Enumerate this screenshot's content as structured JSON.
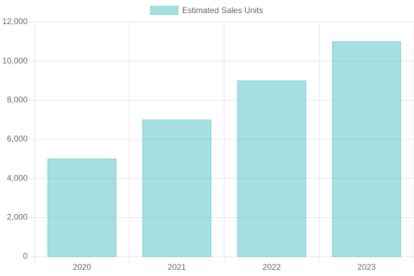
{
  "chart_data": {
    "type": "bar",
    "categories": [
      "2020",
      "2021",
      "2022",
      "2023"
    ],
    "series": [
      {
        "name": "Estimated Sales Units",
        "color": "rgba(75,192,192,0.5)",
        "border_color": "rgba(75,192,192,0.6)",
        "values": [
          5000,
          7000,
          9000,
          11000
        ]
      }
    ],
    "ylim": [
      0,
      12000
    ],
    "yticks": [
      0,
      {
        "value": 2000,
        "label": "2,000"
      },
      {
        "value": 4000,
        "label": "4,000"
      },
      {
        "value": 6000,
        "label": "6,000"
      },
      {
        "value": 8000,
        "label": "8,000"
      },
      {
        "value": 10000,
        "label": "10,000"
      },
      {
        "value": 12000,
        "label": "12,000"
      }
    ],
    "grid": true,
    "legend": "top"
  }
}
